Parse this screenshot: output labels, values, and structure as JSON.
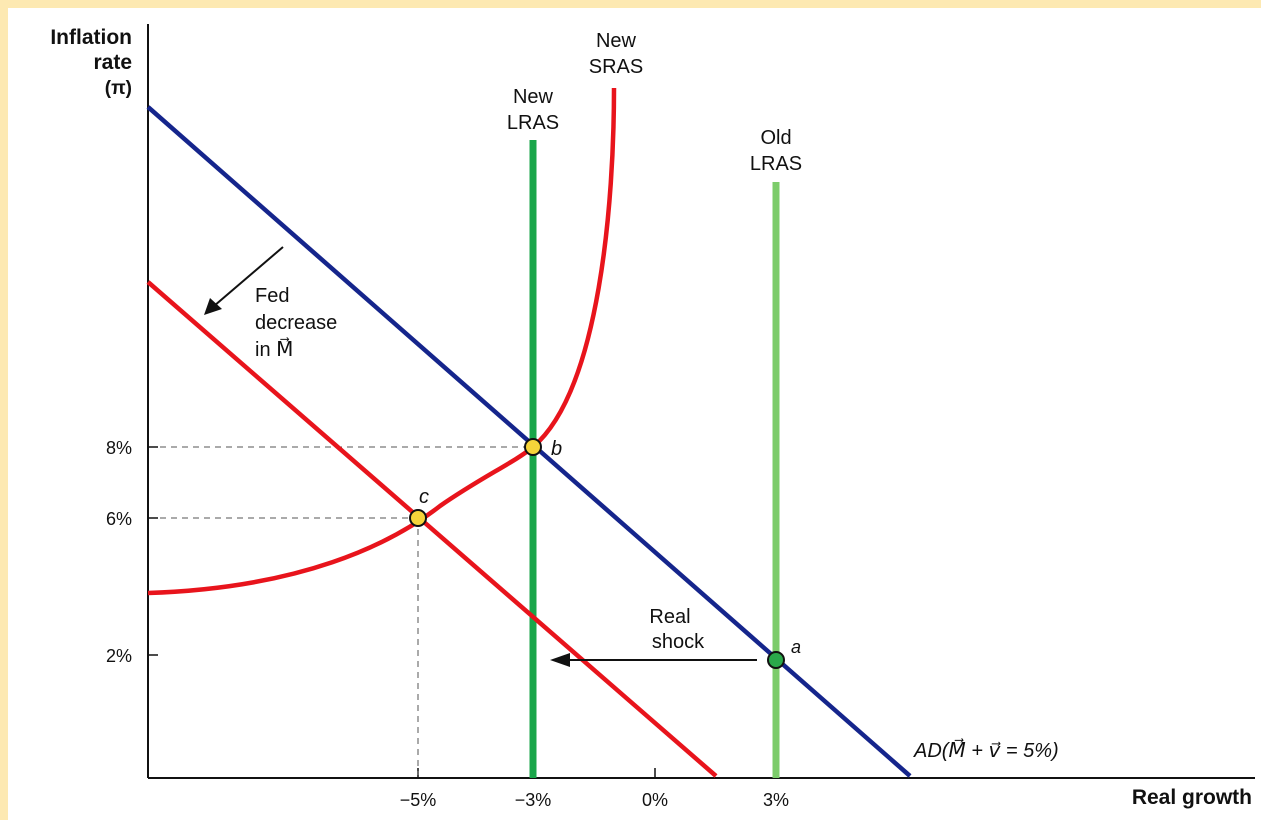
{
  "y_axis": {
    "title_line1": "Inflation",
    "title_line2": "rate",
    "title_line3": "(π)"
  },
  "x_axis": {
    "title": "Real growth"
  },
  "y_ticks": [
    "8%",
    "6%",
    "2%"
  ],
  "x_ticks": [
    "−5%",
    "−3%",
    "0%",
    "3%"
  ],
  "curves": {
    "new_sras": {
      "line1": "New",
      "line2": "SRAS"
    },
    "new_lras": {
      "line1": "New",
      "line2": "LRAS"
    },
    "old_lras": {
      "line1": "Old",
      "line2": "LRAS"
    },
    "ad_label": "AD(M⃗ + v⃗ = 5%)"
  },
  "annotations": {
    "fed_line1": "Fed",
    "fed_line2": "decrease",
    "fed_line3": "in M⃗",
    "shock_line1": "Real",
    "shock_line2": "shock"
  },
  "points": {
    "a": "a",
    "b": "b",
    "c": "c"
  },
  "colors": {
    "ad": "#15258c",
    "ad_new": "#e8141c",
    "sras": "#e8141c",
    "new_lras": "#1aa64a",
    "old_lras": "#7ccc6a",
    "point_yellow": "#f6d43a",
    "point_green": "#2aa84a"
  }
}
